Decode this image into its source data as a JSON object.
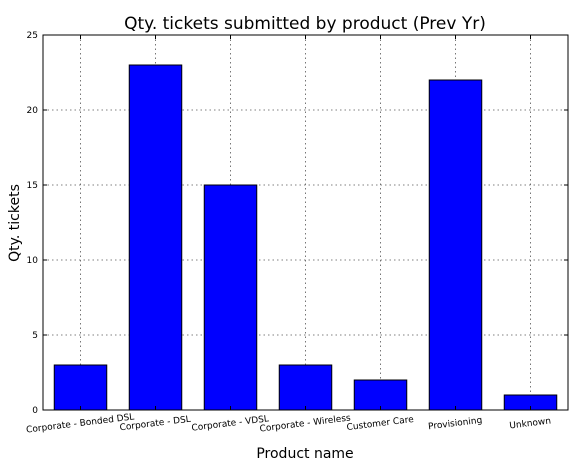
{
  "chart_data": {
    "type": "bar",
    "title": "Qty. tickets submitted by product (Prev Yr)",
    "xlabel": "Product name",
    "ylabel": "Qty. tickets",
    "categories": [
      "Corporate - Bonded DSL",
      "Corporate - DSL",
      "Corporate - VDSL",
      "Corporate - Wireless",
      "Customer Care",
      "Provisioning",
      "Unknown"
    ],
    "values": [
      3,
      23,
      15,
      3,
      2,
      22,
      1
    ],
    "ylim": [
      0,
      25
    ],
    "yticks": [
      0,
      5,
      10,
      15,
      20,
      25
    ],
    "grid": true,
    "bar_color": "#0000ff"
  }
}
